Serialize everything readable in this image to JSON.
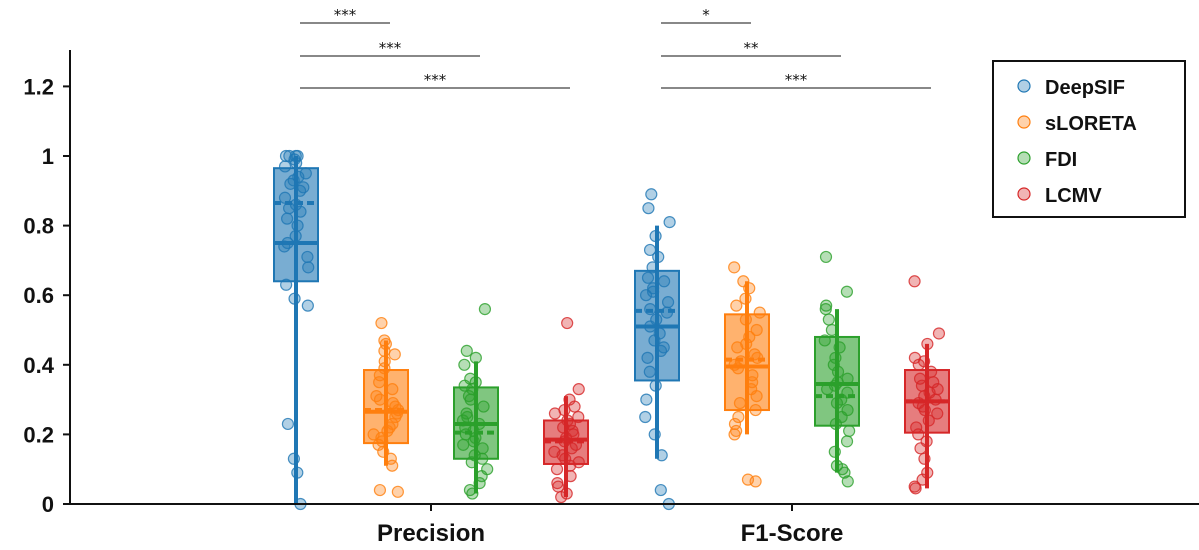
{
  "chart_data": {
    "type": "box",
    "title": "",
    "xlabel": "",
    "ylabel": "",
    "ylim": [
      0,
      1.3
    ],
    "yticks": [
      0,
      0.2,
      0.4,
      0.6,
      0.8,
      1,
      1.2
    ],
    "ytick_labels": [
      "0",
      "0.2",
      "0.4",
      "0.6",
      "0.8",
      "1",
      "1.2"
    ],
    "grid": false,
    "legend_position": "top-right",
    "categories": [
      "Precision",
      "F1-Score"
    ],
    "series": [
      {
        "name": "DeepSIF",
        "color": "#1f77b4",
        "stats": [
          {
            "q1": 0.64,
            "median": 0.75,
            "mean": 0.865,
            "q3": 0.965,
            "whisker_low": 0.0,
            "whisker_high": 1.0,
            "points": [
              1.0,
              1.0,
              1.0,
              1.0,
              0.99,
              0.98,
              0.97,
              0.95,
              0.94,
              0.93,
              0.92,
              0.91,
              0.9,
              0.88,
              0.86,
              0.85,
              0.84,
              0.82,
              0.8,
              0.77,
              0.75,
              0.74,
              0.71,
              0.68,
              0.63,
              0.59,
              0.57,
              0.23,
              0.13,
              0.09,
              0.0
            ]
          },
          {
            "q1": 0.355,
            "median": 0.51,
            "mean": 0.555,
            "q3": 0.67,
            "whisker_low": 0.13,
            "whisker_high": 0.8,
            "points": [
              0.89,
              0.85,
              0.81,
              0.77,
              0.73,
              0.71,
              0.68,
              0.65,
              0.64,
              0.62,
              0.61,
              0.6,
              0.58,
              0.56,
              0.55,
              0.53,
              0.51,
              0.49,
              0.47,
              0.45,
              0.44,
              0.42,
              0.38,
              0.34,
              0.3,
              0.25,
              0.2,
              0.14,
              0.04,
              0.0
            ]
          }
        ]
      },
      {
        "name": "sLORETA",
        "color": "#ff7f0e",
        "stats": [
          {
            "q1": 0.175,
            "median": 0.265,
            "mean": 0.27,
            "q3": 0.385,
            "whisker_low": 0.11,
            "whisker_high": 0.47,
            "points": [
              0.52,
              0.47,
              0.46,
              0.44,
              0.43,
              0.41,
              0.39,
              0.37,
              0.35,
              0.33,
              0.31,
              0.3,
              0.29,
              0.28,
              0.27,
              0.26,
              0.25,
              0.23,
              0.22,
              0.21,
              0.2,
              0.19,
              0.18,
              0.17,
              0.15,
              0.13,
              0.11,
              0.04,
              0.035
            ]
          },
          {
            "q1": 0.27,
            "median": 0.395,
            "mean": 0.415,
            "q3": 0.545,
            "whisker_low": 0.2,
            "whisker_high": 0.64,
            "points": [
              0.68,
              0.64,
              0.62,
              0.59,
              0.57,
              0.55,
              0.53,
              0.5,
              0.48,
              0.46,
              0.45,
              0.43,
              0.42,
              0.41,
              0.4,
              0.39,
              0.37,
              0.35,
              0.33,
              0.31,
              0.29,
              0.27,
              0.25,
              0.23,
              0.21,
              0.2,
              0.07,
              0.065
            ]
          }
        ]
      },
      {
        "name": "FDI",
        "color": "#2ca02c",
        "stats": [
          {
            "q1": 0.13,
            "median": 0.23,
            "mean": 0.205,
            "q3": 0.335,
            "whisker_low": 0.03,
            "whisker_high": 0.41,
            "points": [
              0.56,
              0.44,
              0.42,
              0.4,
              0.36,
              0.35,
              0.34,
              0.33,
              0.31,
              0.3,
              0.28,
              0.26,
              0.25,
              0.24,
              0.23,
              0.22,
              0.21,
              0.2,
              0.19,
              0.18,
              0.17,
              0.16,
              0.14,
              0.13,
              0.12,
              0.1,
              0.08,
              0.06,
              0.04,
              0.03
            ]
          },
          {
            "q1": 0.225,
            "median": 0.345,
            "mean": 0.31,
            "q3": 0.48,
            "whisker_low": 0.09,
            "whisker_high": 0.56,
            "points": [
              0.71,
              0.61,
              0.57,
              0.56,
              0.53,
              0.5,
              0.47,
              0.45,
              0.42,
              0.4,
              0.38,
              0.36,
              0.35,
              0.34,
              0.33,
              0.32,
              0.3,
              0.29,
              0.27,
              0.25,
              0.23,
              0.21,
              0.18,
              0.15,
              0.11,
              0.1,
              0.09,
              0.065
            ]
          }
        ]
      },
      {
        "name": "LCMV",
        "color": "#d62728",
        "stats": [
          {
            "q1": 0.115,
            "median": 0.185,
            "mean": 0.18,
            "q3": 0.24,
            "whisker_low": 0.02,
            "whisker_high": 0.31,
            "points": [
              0.52,
              0.33,
              0.3,
              0.28,
              0.27,
              0.26,
              0.25,
              0.24,
              0.23,
              0.22,
              0.21,
              0.2,
              0.19,
              0.18,
              0.17,
              0.16,
              0.15,
              0.14,
              0.13,
              0.12,
              0.11,
              0.1,
              0.08,
              0.06,
              0.05,
              0.03,
              0.02
            ]
          },
          {
            "q1": 0.205,
            "median": 0.295,
            "mean": 0.295,
            "q3": 0.385,
            "whisker_low": 0.045,
            "whisker_high": 0.46,
            "points": [
              0.64,
              0.49,
              0.46,
              0.42,
              0.41,
              0.4,
              0.38,
              0.36,
              0.35,
              0.34,
              0.33,
              0.32,
              0.31,
              0.3,
              0.29,
              0.28,
              0.27,
              0.26,
              0.24,
              0.22,
              0.2,
              0.18,
              0.16,
              0.13,
              0.09,
              0.07,
              0.05,
              0.045
            ]
          }
        ]
      }
    ],
    "significance": [
      {
        "category": "Precision",
        "from": "DeepSIF",
        "to": "sLORETA",
        "label": "***"
      },
      {
        "category": "Precision",
        "from": "DeepSIF",
        "to": "FDI",
        "label": "***"
      },
      {
        "category": "Precision",
        "from": "DeepSIF",
        "to": "LCMV",
        "label": "***"
      },
      {
        "category": "F1-Score",
        "from": "DeepSIF",
        "to": "sLORETA",
        "label": "*"
      },
      {
        "category": "F1-Score",
        "from": "DeepSIF",
        "to": "FDI",
        "label": "**"
      },
      {
        "category": "F1-Score",
        "from": "DeepSIF",
        "to": "LCMV",
        "label": "***"
      }
    ]
  }
}
